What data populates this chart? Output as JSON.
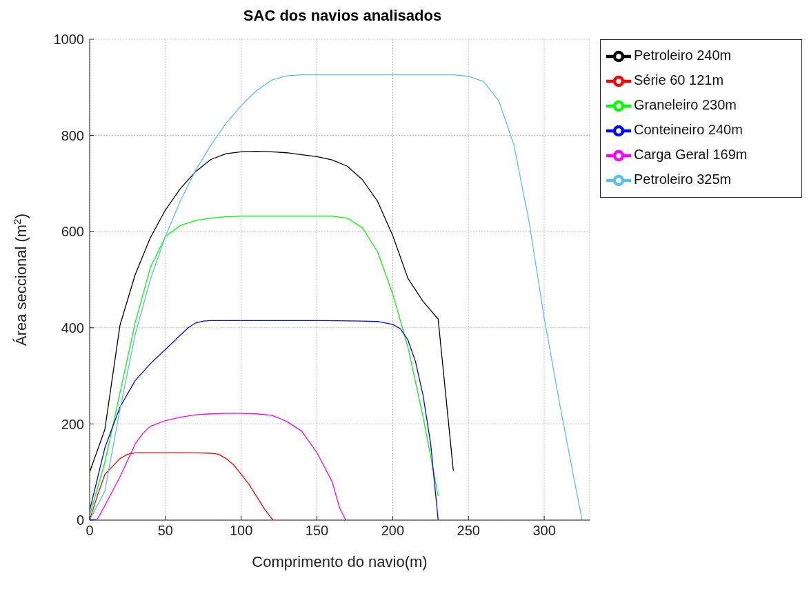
{
  "chart_data": {
    "type": "line",
    "title": "SAC dos navios analisados",
    "xlabel": "Comprimento do navio(m)",
    "ylabel": "Área seccional (m$^{2}$)",
    "xlim": [
      0,
      330
    ],
    "xticks": [
      0,
      50,
      100,
      150,
      200,
      250,
      300
    ],
    "ylim": [
      0,
      1000
    ],
    "yticks": [
      0,
      200,
      400,
      600,
      800,
      1000
    ],
    "grid": true,
    "legend": "top right",
    "series": [
      {
        "name": "Petroleiro 240m",
        "color": "#000000",
        "x": [
          0,
          10,
          20,
          30,
          40,
          50,
          60,
          70,
          80,
          90,
          100,
          110,
          120,
          130,
          140,
          150,
          160,
          170,
          180,
          190,
          200,
          210,
          220,
          230,
          240
        ],
        "values": [
          100,
          188,
          405,
          510,
          587,
          645,
          690,
          725,
          750,
          762,
          766,
          767,
          766,
          764,
          760,
          756,
          749,
          736,
          708,
          663,
          592,
          503,
          455,
          418,
          103
        ]
      },
      {
        "name": "Série 60 121m",
        "color": "#ff0000",
        "x": [
          0,
          5,
          10,
          20,
          25,
          30,
          40,
          50,
          60,
          70,
          80,
          85,
          90,
          95,
          100,
          105,
          110,
          115,
          119,
          121
        ],
        "values": [
          0,
          50,
          95,
          128,
          137,
          140,
          140,
          140,
          140,
          140,
          139,
          137,
          128,
          115,
          95,
          75,
          50,
          25,
          8,
          0
        ]
      },
      {
        "name": "Graneleiro 230m",
        "color": "#00ff00",
        "x": [
          0,
          10,
          20,
          30,
          40,
          50,
          60,
          70,
          80,
          90,
          100,
          160,
          170,
          180,
          190,
          200,
          210,
          220,
          230
        ],
        "values": [
          10,
          120,
          265,
          410,
          525,
          590,
          613,
          623,
          628,
          631,
          632,
          632,
          628,
          608,
          558,
          470,
          360,
          215,
          50
        ]
      },
      {
        "name": "Conteineiro 240m",
        "color": "#0000ff",
        "x": [
          0,
          10,
          20,
          30,
          40,
          50,
          60,
          65,
          70,
          75,
          80,
          100,
          150,
          180,
          190,
          200,
          205,
          210,
          215,
          220,
          225,
          230
        ],
        "values": [
          20,
          150,
          235,
          290,
          325,
          355,
          385,
          400,
          410,
          414,
          415,
          415,
          415,
          414,
          413,
          407,
          398,
          375,
          330,
          260,
          160,
          0
        ]
      },
      {
        "name": "Carga Geral 169m",
        "color": "#ff00ff",
        "x": [
          0,
          5,
          10,
          20,
          30,
          35,
          40,
          50,
          60,
          70,
          80,
          90,
          100,
          110,
          120,
          125,
          130,
          140,
          150,
          160,
          165,
          169
        ],
        "values": [
          0,
          2,
          30,
          90,
          158,
          180,
          195,
          207,
          214,
          219,
          221,
          222,
          222,
          221,
          218,
          212,
          205,
          185,
          140,
          80,
          25,
          0
        ]
      },
      {
        "name": "Petroleiro 325m",
        "color": "#5bc0e8",
        "x": [
          0,
          10,
          20,
          30,
          40,
          50,
          60,
          70,
          80,
          90,
          100,
          110,
          120,
          130,
          140,
          240,
          250,
          260,
          270,
          280,
          290,
          300,
          310,
          320,
          325
        ],
        "values": [
          0,
          60,
          230,
          385,
          500,
          590,
          665,
          728,
          780,
          825,
          862,
          893,
          915,
          924,
          926,
          926,
          923,
          912,
          872,
          780,
          620,
          420,
          245,
          80,
          0
        ]
      }
    ]
  }
}
